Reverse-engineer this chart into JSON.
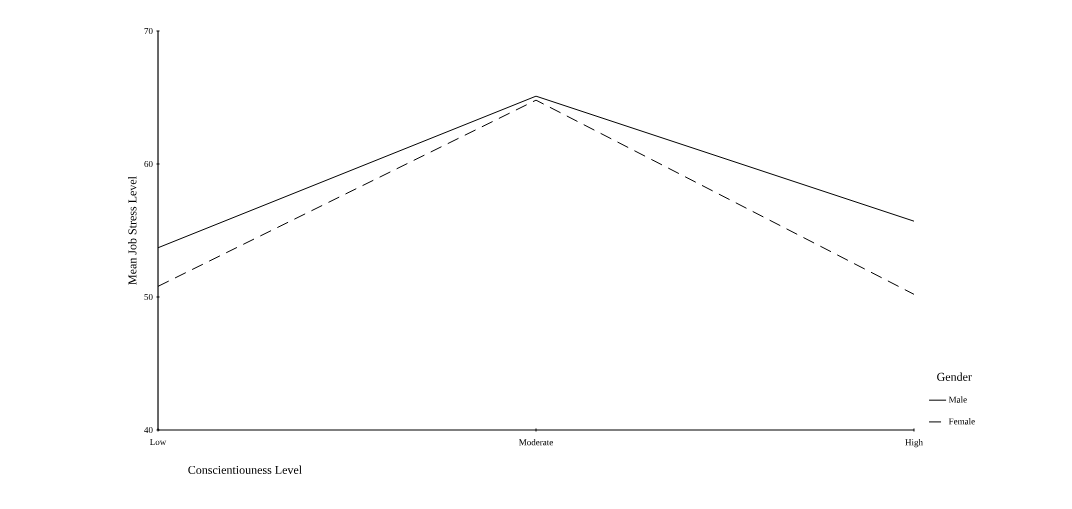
{
  "chart_data": {
    "type": "line",
    "xlabel": "Conscientiouness Level",
    "ylabel": "Mean Job Stress Level",
    "legend_title": "Gender",
    "categories": [
      "Low",
      "Moderate",
      "High"
    ],
    "series": [
      {
        "name": "Male",
        "color": "#000000",
        "line_style": "solid",
        "values": [
          53.7,
          65.1,
          55.7
        ]
      },
      {
        "name": "Female",
        "color": "#000000",
        "line_style": "dashed",
        "values": [
          50.8,
          64.8,
          50.2
        ]
      }
    ],
    "ylim": [
      40,
      70
    ],
    "yticks": [
      40,
      50,
      60,
      70
    ],
    "legend": "bottom right"
  }
}
